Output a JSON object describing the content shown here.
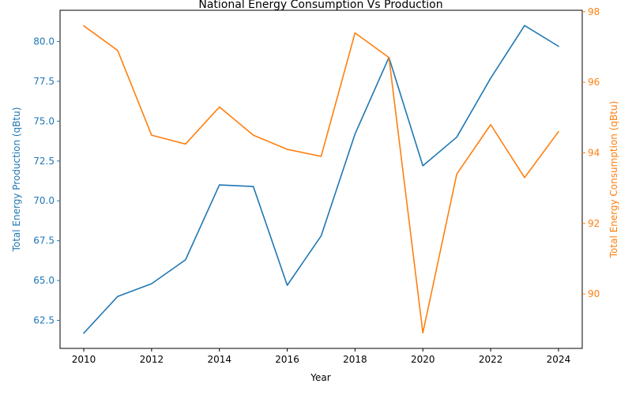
{
  "chart_data": {
    "type": "line",
    "title": "National Energy Consumption Vs Production",
    "xlabel": "Year",
    "x": [
      2010,
      2011,
      2012,
      2013,
      2014,
      2015,
      2016,
      2017,
      2018,
      2019,
      2020,
      2021,
      2022,
      2023,
      2024
    ],
    "xlim": [
      2009.3,
      2024.7
    ],
    "xticks": [
      2010,
      2012,
      2014,
      2016,
      2018,
      2020,
      2022,
      2024
    ],
    "grid": false,
    "series": [
      {
        "name": "Total Energy Production (qBtu)",
        "axis": "left",
        "color": "#1f77b4",
        "values": [
          61.7,
          64.0,
          64.8,
          66.3,
          71.0,
          70.9,
          64.7,
          67.8,
          74.2,
          79.0,
          72.2,
          74.0,
          77.7,
          81.0,
          79.7
        ]
      },
      {
        "name": "Total Energy Consumption (qBtu)",
        "axis": "right",
        "color": "#ff7f0e",
        "values": [
          97.6,
          96.9,
          94.5,
          94.25,
          95.3,
          94.5,
          94.1,
          93.9,
          97.4,
          96.7,
          88.9,
          93.4,
          94.8,
          93.3,
          94.6
        ]
      }
    ],
    "y_left": {
      "label": "Total Energy Production (qBtu)",
      "lim": [
        60.74,
        81.96
      ],
      "ticks": [
        62.5,
        65.0,
        67.5,
        70.0,
        72.5,
        75.0,
        77.5,
        80.0
      ],
      "tick_labels": [
        "62.5",
        "65.0",
        "67.5",
        "70.0",
        "72.5",
        "75.0",
        "77.5",
        "80.0"
      ]
    },
    "y_right": {
      "label": "Total Energy Consumption (qBtu)",
      "lim": [
        88.46,
        98.04
      ],
      "ticks": [
        90,
        92,
        94,
        96,
        98
      ],
      "tick_labels": [
        "90",
        "92",
        "94",
        "96",
        "98"
      ]
    }
  }
}
